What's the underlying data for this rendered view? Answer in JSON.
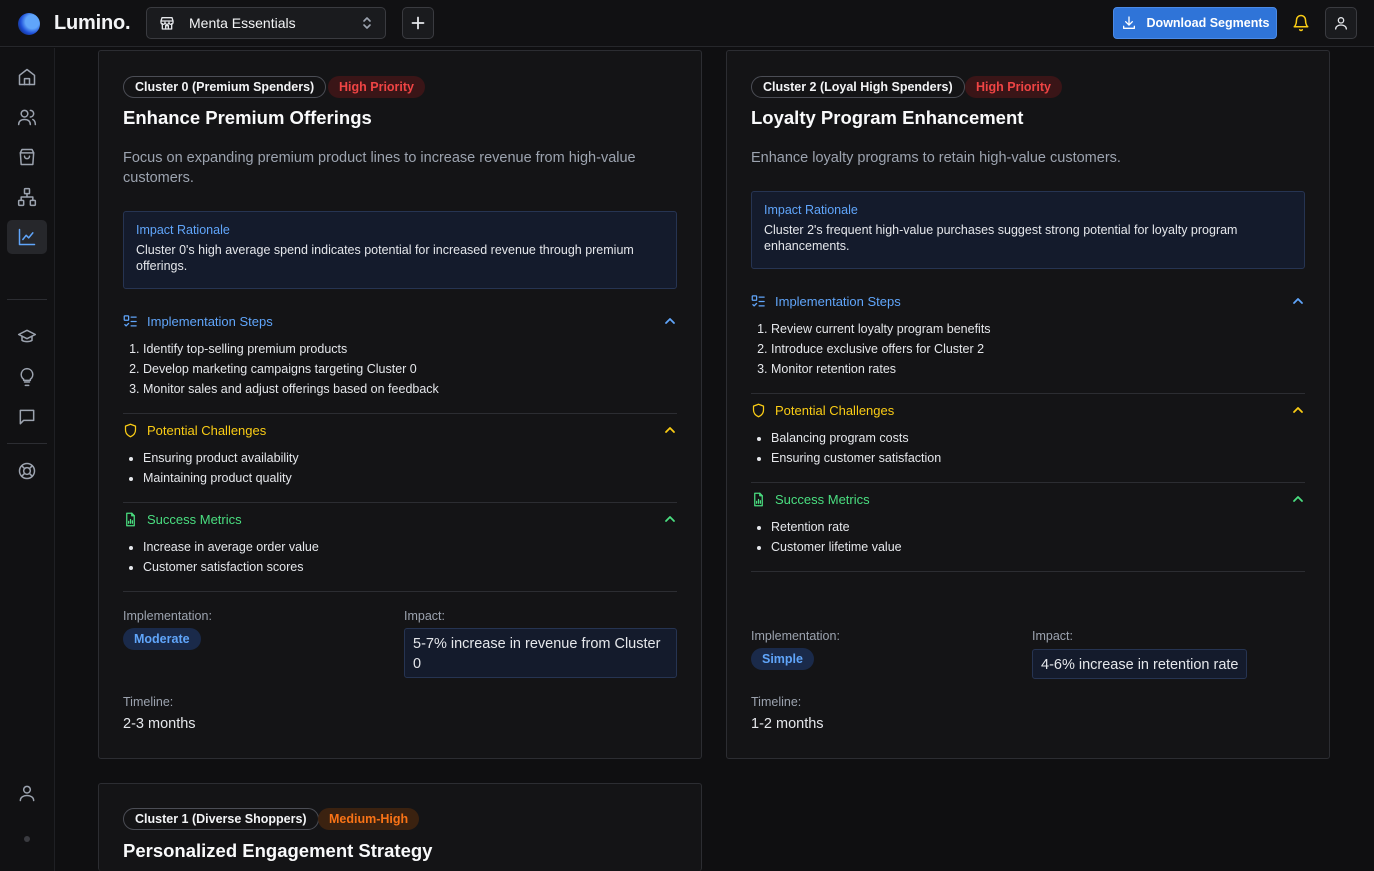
{
  "app": {
    "brand": "Lumino."
  },
  "header": {
    "store_name": "Menta Essentials",
    "download_label": "Download Segments"
  },
  "icons": {
    "sidebar": [
      "home-icon",
      "users-icon",
      "shopping-bag-icon",
      "hierarchy-icon",
      "chart-icon",
      "graduation-cap-icon",
      "lightbulb-icon",
      "message-icon",
      "lifebuoy-icon",
      "user-icon"
    ]
  },
  "colors": {
    "accent": "#2f74d8",
    "high_priority": "#ef4444",
    "medium_priority": "#f97316",
    "steps": "#60a5fa",
    "challenges": "#facc15",
    "metrics": "#4ade80"
  },
  "cards": [
    {
      "cluster": "Cluster 0 (Premium Spenders)",
      "priority": "High Priority",
      "title": "Enhance Premium Offerings",
      "description": "Focus on expanding premium product lines to increase revenue from high-value customers.",
      "rationale_title": "Impact Rationale",
      "rationale": "Cluster 0's high average spend indicates potential for increased revenue through premium offerings.",
      "steps_title": "Implementation Steps",
      "steps": [
        "Identify top-selling premium products",
        "Develop marketing campaigns targeting Cluster 0",
        "Monitor sales and adjust offerings based on feedback"
      ],
      "challenges_title": "Potential Challenges",
      "challenges": [
        "Ensuring product availability",
        "Maintaining product quality"
      ],
      "metrics_title": "Success Metrics",
      "metrics": [
        "Increase in average order value",
        "Customer satisfaction scores"
      ],
      "implementation_label": "Implementation:",
      "implementation": "Moderate",
      "impact_label": "Impact:",
      "impact": "5-7% increase in revenue from Cluster 0",
      "timeline_label": "Timeline:",
      "timeline": "2-3 months"
    },
    {
      "cluster": "Cluster 2 (Loyal High Spenders)",
      "priority": "High Priority",
      "title": "Loyalty Program Enhancement",
      "description": "Enhance loyalty programs to retain high-value customers.",
      "rationale_title": "Impact Rationale",
      "rationale": "Cluster 2's frequent high-value purchases suggest strong potential for loyalty program enhancements.",
      "steps_title": "Implementation Steps",
      "steps": [
        "Review current loyalty program benefits",
        "Introduce exclusive offers for Cluster 2",
        "Monitor retention rates"
      ],
      "challenges_title": "Potential Challenges",
      "challenges": [
        "Balancing program costs",
        "Ensuring customer satisfaction"
      ],
      "metrics_title": "Success Metrics",
      "metrics": [
        "Retention rate",
        "Customer lifetime value"
      ],
      "implementation_label": "Implementation:",
      "implementation": "Simple",
      "impact_label": "Impact:",
      "impact": "4-6% increase in retention rate",
      "timeline_label": "Timeline:",
      "timeline": "1-2 months"
    },
    {
      "cluster": "Cluster 1 (Diverse Shoppers)",
      "priority": "Medium-High",
      "title": "Personalized Engagement Strategy"
    }
  ]
}
